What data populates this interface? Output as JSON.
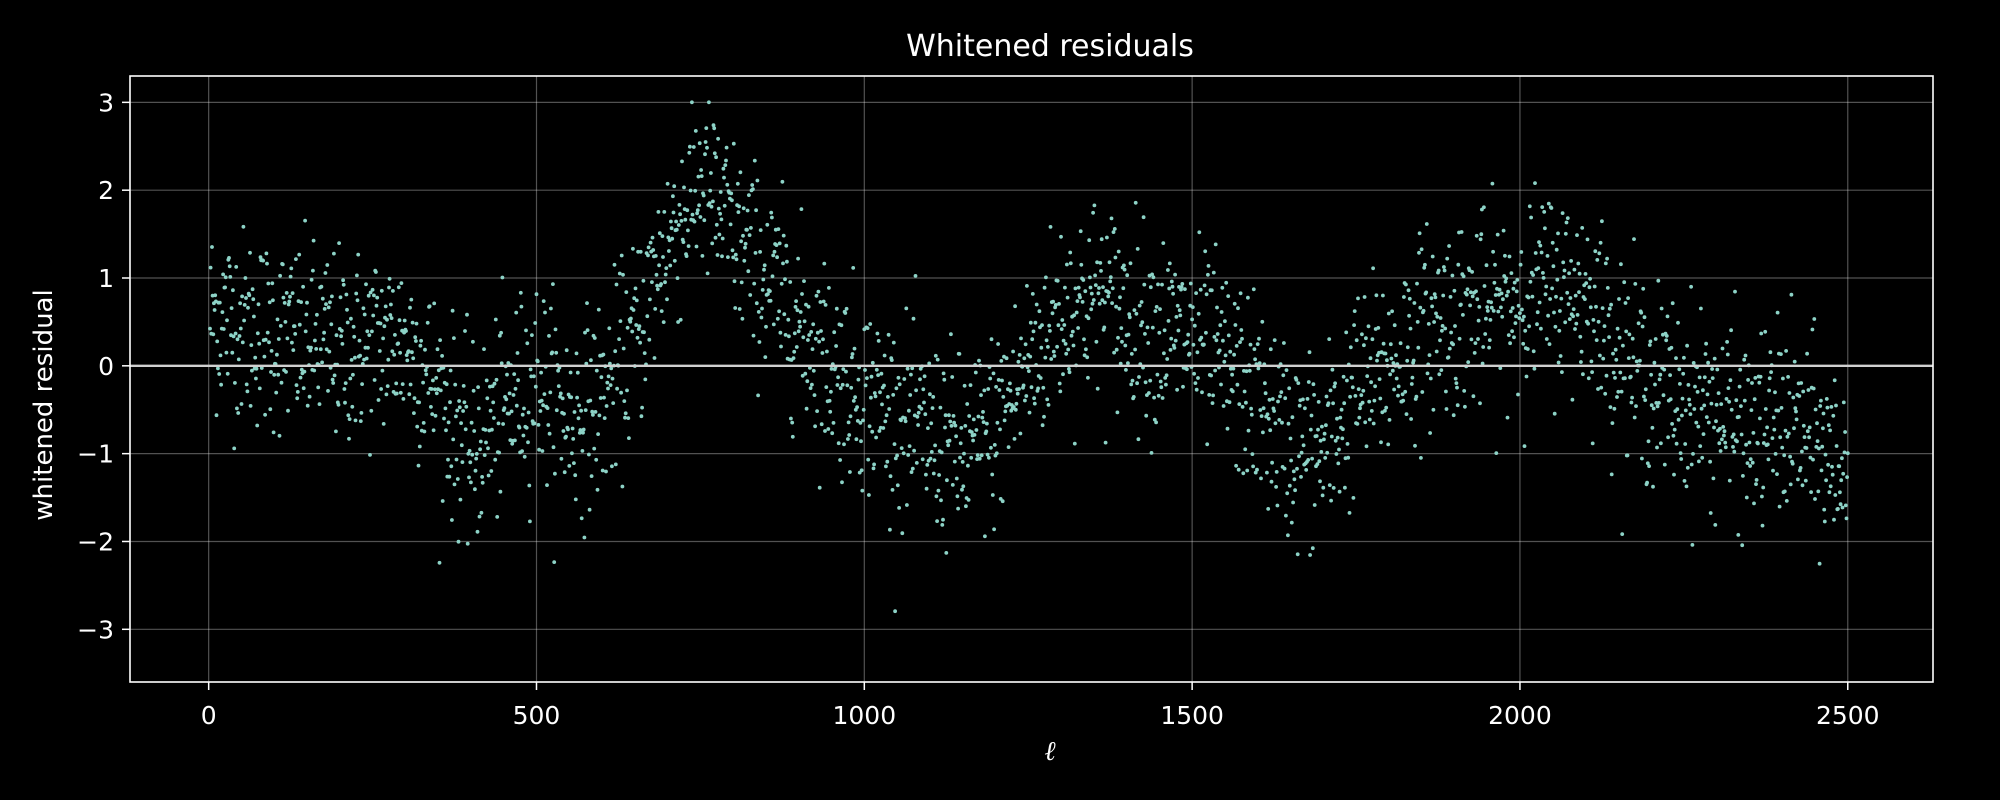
{
  "chart_data": {
    "type": "scatter",
    "title": "Whitened residuals",
    "xlabel": "ℓ",
    "ylabel": "whitened residual",
    "xlim": [
      -120,
      2630
    ],
    "ylim": [
      -3.6,
      3.3
    ],
    "xticks": [
      0,
      500,
      1000,
      1500,
      2000,
      2500
    ],
    "yticks": [
      3,
      2,
      1,
      0,
      -1,
      -2,
      -3
    ],
    "xtick_labels": [
      "0",
      "500",
      "1000",
      "1500",
      "2000",
      "2500"
    ],
    "ytick_labels": [
      "3",
      "2",
      "1",
      "0",
      "−1",
      "−2",
      "−3"
    ],
    "grid": true,
    "reference_line_y": 0,
    "colors": {
      "points": "#8dd3c7",
      "background": "#000000",
      "foreground": "#ffffff",
      "zero_line": "#d0d0d0"
    },
    "series": [
      {
        "x_range": [
          2,
          2500
        ],
        "x_step": 1,
        "approx_mean_by_x": [
          [
            0,
            0.6
          ],
          [
            100,
            0.35
          ],
          [
            200,
            0.2
          ],
          [
            300,
            0.3
          ],
          [
            350,
            -0.3
          ],
          [
            400,
            -1.0
          ],
          [
            450,
            -0.5
          ],
          [
            500,
            -0.1
          ],
          [
            550,
            -0.6
          ],
          [
            600,
            -0.4
          ],
          [
            650,
            0.3
          ],
          [
            700,
            1.4
          ],
          [
            750,
            2.1
          ],
          [
            800,
            1.5
          ],
          [
            850,
            1.0
          ],
          [
            900,
            0.5
          ],
          [
            950,
            0.0
          ],
          [
            1000,
            -0.3
          ],
          [
            1050,
            -0.6
          ],
          [
            1100,
            -0.8
          ],
          [
            1150,
            -1.0
          ],
          [
            1200,
            -0.7
          ],
          [
            1250,
            0.0
          ],
          [
            1300,
            0.6
          ],
          [
            1350,
            0.8
          ],
          [
            1400,
            0.6
          ],
          [
            1450,
            0.4
          ],
          [
            1500,
            0.3
          ],
          [
            1550,
            0.0
          ],
          [
            1600,
            -0.4
          ],
          [
            1650,
            -0.9
          ],
          [
            1700,
            -1.0
          ],
          [
            1750,
            -0.3
          ],
          [
            1800,
            0.0
          ],
          [
            1850,
            0.4
          ],
          [
            1900,
            0.6
          ],
          [
            1950,
            0.6
          ],
          [
            2000,
            0.8
          ],
          [
            2050,
            0.9
          ],
          [
            2100,
            0.8
          ],
          [
            2150,
            0.2
          ],
          [
            2200,
            -0.2
          ],
          [
            2250,
            -0.4
          ],
          [
            2300,
            -0.5
          ],
          [
            2350,
            -0.8
          ],
          [
            2400,
            -0.6
          ],
          [
            2450,
            -0.9
          ],
          [
            2500,
            -1.2
          ]
        ],
        "approx_scatter_sd": 0.55
      }
    ]
  }
}
